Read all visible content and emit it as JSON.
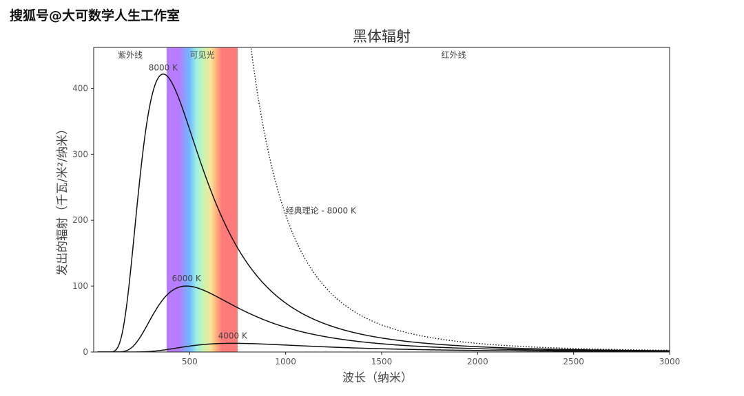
{
  "watermark": "搜狐号@大可数学人生工作室",
  "chart_data": {
    "type": "line",
    "title": "黑体辐射",
    "xlabel": "波长（纳米）",
    "ylabel": "发出的辐射（千瓦/米²/纳米）",
    "xlim": [
      0,
      3000
    ],
    "ylim": [
      0,
      462
    ],
    "x_ticks": [
      500,
      1000,
      1500,
      2000,
      2500,
      3000
    ],
    "y_ticks": [
      0,
      100,
      200,
      300,
      400
    ],
    "grid": false,
    "bands": [
      {
        "label": "紫外线",
        "range": [
          0,
          380
        ]
      },
      {
        "label": "可见光",
        "range": [
          380,
          750
        ]
      },
      {
        "label": "红外线",
        "range": [
          750,
          3000
        ]
      }
    ],
    "series": [
      {
        "name": "8000 K",
        "temperature": 8000,
        "style": "solid",
        "peak": {
          "x": 362,
          "y": 420
        }
      },
      {
        "name": "6000 K",
        "temperature": 6000,
        "style": "solid",
        "peak": {
          "x": 483,
          "y": 100
        }
      },
      {
        "name": "4000 K",
        "temperature": 4000,
        "style": "solid",
        "peak": {
          "x": 724,
          "y": 13
        }
      },
      {
        "name": "经典理论 - 8000 K",
        "temperature": 8000,
        "style": "dotted",
        "model": "rayleigh-jeans"
      }
    ],
    "colors": {
      "line": "#111111",
      "violet": "#b77cff",
      "blue": "#6fb8ff",
      "cyan": "#9ff0e6",
      "green": "#b8f5a8",
      "yellow": "#f7e59a",
      "orange": "#ffb07a",
      "red": "#ff7a7a"
    }
  }
}
